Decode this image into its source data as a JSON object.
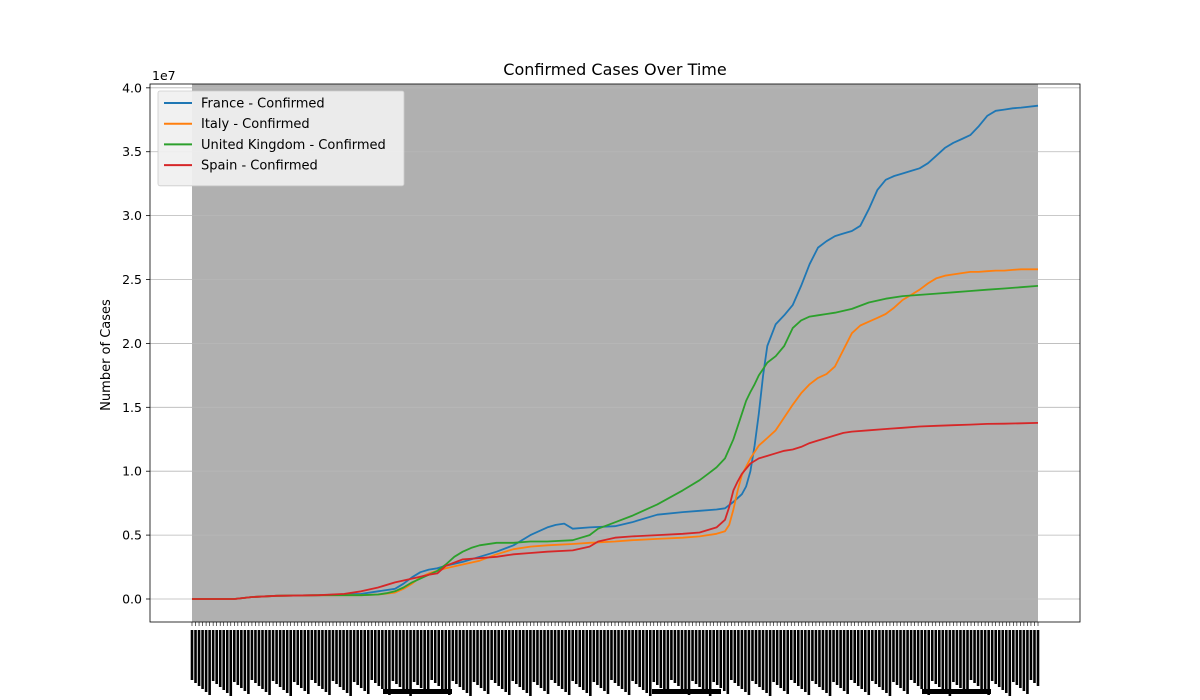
{
  "chart_data": {
    "type": "line",
    "title": "Confirmed Cases Over Time",
    "xlabel": "",
    "ylabel": "Number of Cases",
    "y_multiplier_label": "1e7",
    "ylim": [
      -0.18,
      4.03
    ],
    "yticks": [
      0.0,
      0.5,
      1.0,
      1.5,
      2.0,
      2.5,
      3.0,
      3.5,
      4.0
    ],
    "ytick_labels": [
      "0.0",
      "0.5",
      "1.0",
      "1.5",
      "2.0",
      "2.5",
      "3.0",
      "3.5",
      "4.0"
    ],
    "grid": "y",
    "legend_position": "upper-left",
    "background_color": "#b0b0b0",
    "xlim": [
      0,
      100
    ],
    "series": [
      {
        "name": "France - Confirmed",
        "color": "#1f77b4",
        "x": [
          0,
          5,
          7,
          10,
          15,
          20,
          22,
          24,
          25,
          26,
          27,
          28,
          29,
          30,
          32,
          34,
          36,
          38,
          40,
          42,
          43,
          44,
          45,
          47,
          50,
          52,
          55,
          58,
          60,
          62,
          63,
          64,
          65,
          65.5,
          66,
          66.5,
          67,
          67.5,
          68,
          69,
          70,
          71,
          72,
          73,
          74,
          75,
          76,
          77,
          78,
          79,
          80,
          81,
          82,
          83,
          84,
          85,
          86,
          87,
          88,
          89,
          90,
          91,
          92,
          93,
          94,
          95,
          96,
          97,
          98,
          100
        ],
        "y": [
          0.0,
          0.0,
          0.015,
          0.025,
          0.03,
          0.04,
          0.06,
          0.08,
          0.12,
          0.17,
          0.21,
          0.23,
          0.24,
          0.26,
          0.29,
          0.33,
          0.37,
          0.42,
          0.5,
          0.56,
          0.58,
          0.59,
          0.55,
          0.56,
          0.57,
          0.6,
          0.66,
          0.68,
          0.69,
          0.7,
          0.71,
          0.76,
          0.82,
          0.88,
          1.0,
          1.2,
          1.45,
          1.75,
          1.98,
          2.15,
          2.22,
          2.3,
          2.45,
          2.62,
          2.75,
          2.8,
          2.84,
          2.86,
          2.88,
          2.92,
          3.05,
          3.2,
          3.28,
          3.31,
          3.33,
          3.35,
          3.37,
          3.41,
          3.47,
          3.53,
          3.57,
          3.6,
          3.63,
          3.7,
          3.78,
          3.82,
          3.83,
          3.84,
          3.845,
          3.86
        ]
      },
      {
        "name": "Italy - Confirmed",
        "color": "#ff7f0e",
        "x": [
          0,
          5,
          7,
          10,
          15,
          20,
          22,
          24,
          25,
          26,
          27,
          28,
          29,
          30,
          32,
          34,
          36,
          38,
          40,
          42,
          45,
          47,
          50,
          52,
          55,
          58,
          60,
          62,
          63,
          63.5,
          64,
          64.5,
          65,
          66,
          67,
          68,
          69,
          70,
          71,
          72,
          73,
          74,
          75,
          76,
          77,
          78,
          79,
          80,
          81,
          82,
          83,
          84,
          85,
          86,
          87,
          88,
          89,
          90,
          91,
          92,
          93,
          94,
          95,
          96,
          97,
          98,
          100
        ],
        "y": [
          0.0,
          0.0,
          0.015,
          0.025,
          0.03,
          0.03,
          0.035,
          0.05,
          0.08,
          0.12,
          0.17,
          0.2,
          0.22,
          0.24,
          0.27,
          0.3,
          0.35,
          0.39,
          0.41,
          0.42,
          0.43,
          0.44,
          0.45,
          0.46,
          0.47,
          0.48,
          0.49,
          0.51,
          0.53,
          0.58,
          0.7,
          0.85,
          0.97,
          1.1,
          1.2,
          1.26,
          1.32,
          1.42,
          1.52,
          1.61,
          1.68,
          1.73,
          1.76,
          1.82,
          1.95,
          2.08,
          2.14,
          2.17,
          2.2,
          2.23,
          2.28,
          2.34,
          2.38,
          2.42,
          2.47,
          2.51,
          2.53,
          2.54,
          2.55,
          2.56,
          2.56,
          2.565,
          2.57,
          2.57,
          2.575,
          2.58,
          2.58
        ]
      },
      {
        "name": "United Kingdom - Confirmed",
        "color": "#2ca02c",
        "x": [
          0,
          5,
          7,
          10,
          15,
          20,
          22,
          23,
          24,
          25,
          26,
          27,
          28,
          29,
          30,
          31,
          32,
          33,
          34,
          36,
          38,
          40,
          42,
          45,
          47,
          48,
          50,
          52,
          55,
          58,
          60,
          61,
          62,
          63,
          64,
          65,
          65.5,
          66,
          66.5,
          67,
          67.5,
          68,
          69,
          70,
          71,
          72,
          73,
          74,
          75,
          76,
          78,
          80,
          82,
          84,
          86,
          88,
          90,
          92,
          94,
          96,
          98,
          100
        ],
        "y": [
          0.0,
          0.0,
          0.015,
          0.025,
          0.03,
          0.03,
          0.035,
          0.045,
          0.06,
          0.09,
          0.13,
          0.16,
          0.19,
          0.22,
          0.27,
          0.33,
          0.37,
          0.4,
          0.42,
          0.44,
          0.44,
          0.45,
          0.45,
          0.46,
          0.5,
          0.55,
          0.6,
          0.65,
          0.74,
          0.85,
          0.93,
          0.98,
          1.03,
          1.1,
          1.25,
          1.45,
          1.55,
          1.62,
          1.68,
          1.75,
          1.8,
          1.85,
          1.9,
          1.98,
          2.12,
          2.18,
          2.21,
          2.22,
          2.23,
          2.24,
          2.27,
          2.32,
          2.35,
          2.37,
          2.38,
          2.39,
          2.4,
          2.41,
          2.42,
          2.43,
          2.44,
          2.45
        ]
      },
      {
        "name": "Spain - Confirmed",
        "color": "#d62728",
        "x": [
          0,
          5,
          7,
          10,
          15,
          18,
          20,
          22,
          24,
          26,
          28,
          29,
          30,
          32,
          34,
          36,
          38,
          40,
          42,
          45,
          47,
          48,
          50,
          52,
          55,
          58,
          60,
          62,
          63,
          63.5,
          64,
          64.5,
          65,
          66,
          67,
          68,
          69,
          70,
          71,
          72,
          73,
          74,
          75,
          76,
          77,
          78,
          80,
          82,
          84,
          86,
          88,
          90,
          92,
          94,
          96,
          98,
          100
        ],
        "y": [
          0.0,
          0.0,
          0.015,
          0.025,
          0.03,
          0.04,
          0.06,
          0.09,
          0.13,
          0.16,
          0.19,
          0.2,
          0.26,
          0.31,
          0.32,
          0.33,
          0.35,
          0.36,
          0.37,
          0.38,
          0.41,
          0.45,
          0.48,
          0.49,
          0.5,
          0.51,
          0.52,
          0.56,
          0.62,
          0.72,
          0.85,
          0.92,
          0.98,
          1.06,
          1.1,
          1.12,
          1.14,
          1.16,
          1.17,
          1.19,
          1.22,
          1.24,
          1.26,
          1.28,
          1.3,
          1.31,
          1.32,
          1.33,
          1.34,
          1.35,
          1.355,
          1.36,
          1.365,
          1.37,
          1.372,
          1.375,
          1.378
        ]
      }
    ]
  }
}
